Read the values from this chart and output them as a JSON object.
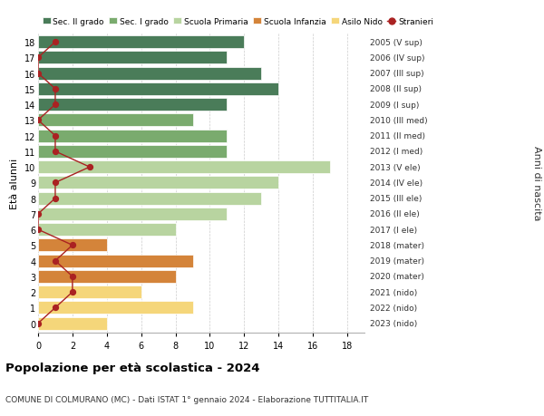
{
  "ages": [
    18,
    17,
    16,
    15,
    14,
    13,
    12,
    11,
    10,
    9,
    8,
    7,
    6,
    5,
    4,
    3,
    2,
    1,
    0
  ],
  "years": [
    "2005 (V sup)",
    "2006 (IV sup)",
    "2007 (III sup)",
    "2008 (II sup)",
    "2009 (I sup)",
    "2010 (III med)",
    "2011 (II med)",
    "2012 (I med)",
    "2013 (V ele)",
    "2014 (IV ele)",
    "2015 (III ele)",
    "2016 (II ele)",
    "2017 (I ele)",
    "2018 (mater)",
    "2019 (mater)",
    "2020 (mater)",
    "2021 (nido)",
    "2022 (nido)",
    "2023 (nido)"
  ],
  "bar_values": [
    12,
    11,
    13,
    14,
    11,
    9,
    11,
    11,
    17,
    14,
    13,
    11,
    8,
    4,
    9,
    8,
    6,
    9,
    4
  ],
  "bar_colors": [
    "#4a7c59",
    "#4a7c59",
    "#4a7c59",
    "#4a7c59",
    "#4a7c59",
    "#7aab6e",
    "#7aab6e",
    "#7aab6e",
    "#b8d4a0",
    "#b8d4a0",
    "#b8d4a0",
    "#b8d4a0",
    "#b8d4a0",
    "#d4843a",
    "#d4843a",
    "#d4843a",
    "#f5d67a",
    "#f5d67a",
    "#f5d67a"
  ],
  "stranieri_values": [
    1,
    0,
    0,
    1,
    1,
    0,
    1,
    1,
    3,
    1,
    1,
    0,
    0,
    2,
    1,
    2,
    2,
    1,
    0
  ],
  "legend_labels": [
    "Sec. II grado",
    "Sec. I grado",
    "Scuola Primaria",
    "Scuola Infanzia",
    "Asilo Nido",
    "Stranieri"
  ],
  "legend_colors": [
    "#4a7c59",
    "#7aab6e",
    "#b8d4a0",
    "#d4843a",
    "#f5d67a",
    "#aa2222"
  ],
  "ylabel_left": "Età alunni",
  "ylabel_right": "Anni di nascita",
  "title": "Popolazione per età scolastica - 2024",
  "subtitle": "COMUNE DI COLMURANO (MC) - Dati ISTAT 1° gennaio 2024 - Elaborazione TUTTITALIA.IT",
  "xlim": [
    0,
    19
  ],
  "xticks": [
    0,
    2,
    4,
    6,
    8,
    10,
    12,
    14,
    16,
    18
  ],
  "background_color": "#ffffff",
  "grid_color": "#cccccc",
  "stranieri_line_color": "#aa2222",
  "stranieri_dot_color": "#aa2222"
}
